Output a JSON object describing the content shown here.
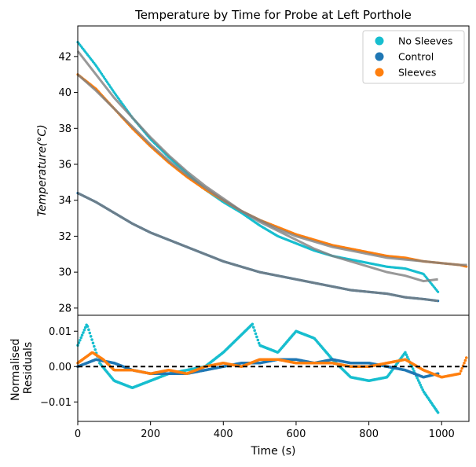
{
  "chart_data": [
    {
      "type": "scatter",
      "title": "Temperature by Time for Probe at Left Porthole",
      "ylabel": "Temperature(°C)",
      "xlabel": "",
      "xlim": [
        0,
        1075
      ],
      "ylim": [
        27.6,
        43.7
      ],
      "yticks": [
        "28",
        "30",
        "32",
        "34",
        "36",
        "38",
        "40",
        "42"
      ],
      "grid": false,
      "legend_placement": "top-right",
      "series": [
        {
          "name": "No Sleeves",
          "color": "#17becf",
          "x": [
            0,
            50,
            100,
            150,
            200,
            250,
            300,
            350,
            400,
            450,
            500,
            550,
            600,
            650,
            700,
            750,
            800,
            850,
            900,
            950,
            990
          ],
          "values": [
            42.8,
            41.5,
            40.0,
            38.6,
            37.4,
            36.4,
            35.5,
            34.6,
            33.9,
            33.3,
            32.6,
            32.0,
            31.6,
            31.2,
            30.9,
            30.7,
            30.5,
            30.3,
            30.2,
            29.9,
            28.9
          ],
          "fit": [
            42.3,
            41.0,
            39.7,
            38.6,
            37.5,
            36.5,
            35.6,
            34.8,
            34.1,
            33.4,
            32.8,
            32.3,
            31.8,
            31.3,
            30.9,
            30.6,
            30.3,
            30.0,
            29.8,
            29.5,
            29.6
          ]
        },
        {
          "name": "Control",
          "color": "#1f77b4",
          "x": [
            0,
            50,
            100,
            150,
            200,
            250,
            300,
            350,
            400,
            450,
            500,
            550,
            600,
            650,
            700,
            750,
            800,
            850,
            900,
            950,
            990
          ],
          "values": [
            34.4,
            33.9,
            33.3,
            32.7,
            32.2,
            31.8,
            31.4,
            31.0,
            30.6,
            30.3,
            30.0,
            29.8,
            29.6,
            29.4,
            29.2,
            29.0,
            28.9,
            28.8,
            28.6,
            28.5,
            28.4
          ],
          "fit": [
            34.4,
            33.9,
            33.3,
            32.7,
            32.2,
            31.8,
            31.4,
            31.0,
            30.6,
            30.3,
            30.0,
            29.8,
            29.6,
            29.4,
            29.2,
            29.0,
            28.9,
            28.8,
            28.6,
            28.5,
            28.4
          ]
        },
        {
          "name": "Sleeves",
          "color": "#ff7f0e",
          "x": [
            0,
            50,
            100,
            150,
            200,
            250,
            300,
            350,
            400,
            450,
            500,
            550,
            600,
            650,
            700,
            750,
            800,
            850,
            900,
            950,
            1000,
            1050,
            1070
          ],
          "values": [
            41.0,
            40.2,
            39.1,
            38.0,
            37.0,
            36.1,
            35.3,
            34.6,
            34.0,
            33.4,
            32.9,
            32.5,
            32.1,
            31.8,
            31.5,
            31.3,
            31.1,
            30.9,
            30.8,
            30.6,
            30.5,
            30.4,
            30.3
          ],
          "fit": [
            41.0,
            40.1,
            39.1,
            38.1,
            37.1,
            36.2,
            35.4,
            34.7,
            34.0,
            33.4,
            32.9,
            32.4,
            32.0,
            31.7,
            31.4,
            31.2,
            31.0,
            30.8,
            30.7,
            30.6,
            30.5,
            30.4,
            30.4
          ]
        }
      ]
    },
    {
      "type": "scatter",
      "title": "",
      "xlabel": "Time (s)",
      "ylabel": "Normalised\nResiduals",
      "xlim": [
        0,
        1075
      ],
      "ylim": [
        -0.0155,
        0.0145
      ],
      "xticks": [
        "0",
        "200",
        "400",
        "600",
        "800",
        "1000"
      ],
      "yticks": [
        "−0.01",
        "0.00",
        "0.01"
      ],
      "zero_line": true,
      "series": [
        {
          "name": "No Sleeves",
          "x": [
            0,
            25,
            60,
            100,
            150,
            200,
            250,
            300,
            350,
            400,
            450,
            480,
            500,
            550,
            600,
            650,
            700,
            750,
            800,
            850,
            900,
            950,
            990
          ],
          "values": [
            0.006,
            0.012,
            0.001,
            -0.004,
            -0.006,
            -0.004,
            -0.002,
            -0.001,
            0.0,
            0.004,
            0.009,
            0.012,
            0.006,
            0.004,
            0.01,
            0.008,
            0.002,
            -0.003,
            -0.004,
            -0.003,
            0.004,
            -0.007,
            -0.013
          ]
        },
        {
          "name": "Control",
          "x": [
            0,
            50,
            100,
            150,
            200,
            250,
            300,
            350,
            400,
            450,
            500,
            550,
            600,
            650,
            700,
            750,
            800,
            850,
            900,
            950,
            990
          ],
          "values": [
            0.0,
            0.002,
            0.001,
            -0.001,
            -0.002,
            -0.002,
            -0.002,
            -0.001,
            0.0,
            0.001,
            0.001,
            0.002,
            0.002,
            0.001,
            0.002,
            0.001,
            0.001,
            0.0,
            -0.001,
            -0.003,
            -0.002
          ]
        },
        {
          "name": "Sleeves",
          "x": [
            0,
            40,
            70,
            100,
            150,
            200,
            250,
            300,
            350,
            400,
            450,
            500,
            550,
            600,
            650,
            700,
            750,
            800,
            850,
            900,
            950,
            1000,
            1050,
            1070
          ],
          "values": [
            0.001,
            0.004,
            0.002,
            -0.001,
            -0.001,
            -0.002,
            -0.001,
            -0.002,
            0.0,
            0.001,
            0.0,
            0.002,
            0.002,
            0.001,
            0.001,
            0.001,
            0.0,
            0.0,
            0.001,
            0.002,
            -0.001,
            -0.003,
            -0.002,
            0.003
          ]
        }
      ]
    }
  ]
}
